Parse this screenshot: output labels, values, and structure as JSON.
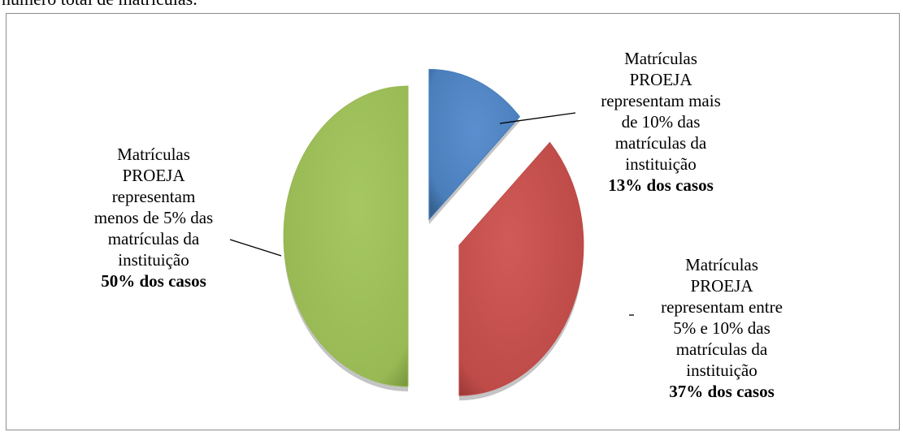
{
  "header_fragment": "número total de matrículas.",
  "chart_data": {
    "type": "pie",
    "title": "",
    "slices": [
      {
        "label_lines": [
          "Matrículas",
          "PROEJA",
          "representam mais",
          "de 10% das",
          "matrículas da",
          "instituição"
        ],
        "percent_text": "13% dos casos",
        "value": 13,
        "color": "#4a7ebb"
      },
      {
        "label_lines": [
          "Matrículas",
          "PROEJA",
          "representam entre",
          "5% e 10% das",
          "matrículas da",
          "instituição"
        ],
        "percent_text": "37% dos casos",
        "value": 37,
        "color": "#be4b48"
      },
      {
        "label_lines": [
          "Matrículas",
          "PROEJA",
          "representam",
          "menos de 5% das",
          "matrículas da",
          "instituição"
        ],
        "percent_text": "50% dos casos",
        "value": 50,
        "color": "#98b954"
      }
    ]
  }
}
